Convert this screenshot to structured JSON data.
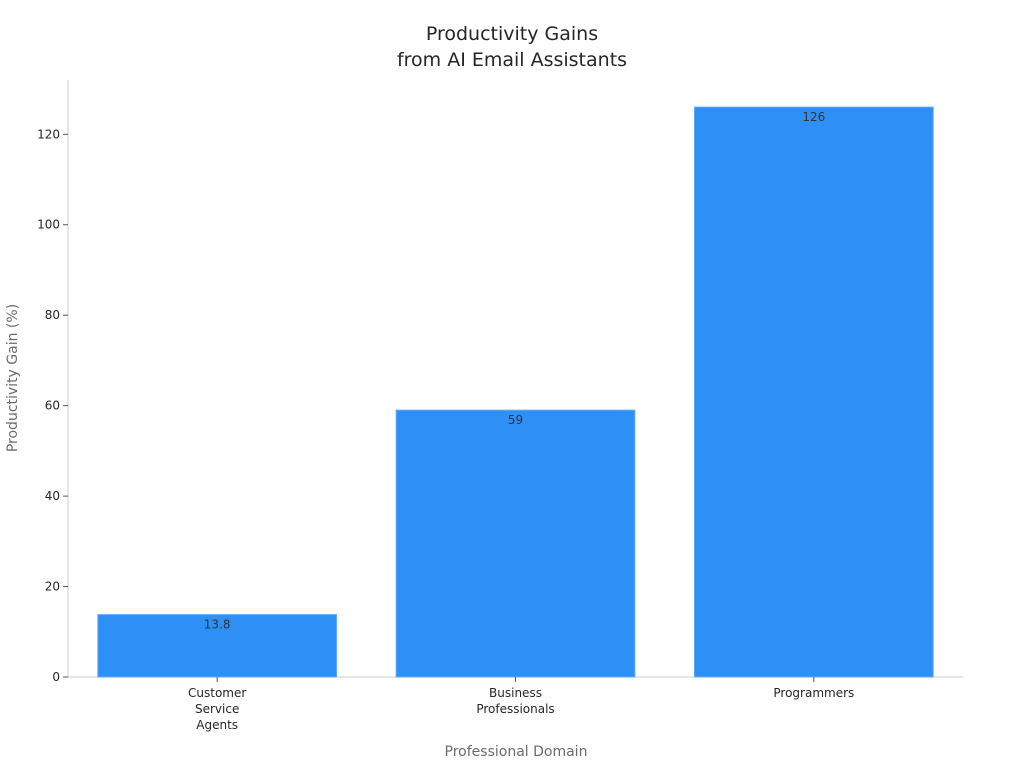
{
  "chart_data": {
    "type": "bar",
    "title": [
      "Productivity Gains",
      "from AI Email Assistants"
    ],
    "xlabel": "Professional Domain",
    "ylabel": "Productivity Gain (%)",
    "categories": [
      [
        "Customer",
        "Service",
        "Agents"
      ],
      [
        "Business",
        "Professionals"
      ],
      [
        "Programmers"
      ]
    ],
    "values": [
      13.8,
      59,
      126
    ],
    "data_labels": [
      "13.8",
      "59",
      "126"
    ],
    "ylim": [
      0,
      132
    ],
    "yticks": [
      0,
      20,
      40,
      60,
      80,
      100,
      120
    ],
    "grid": false,
    "legend": "none",
    "bar_color": "#2e90f7"
  }
}
